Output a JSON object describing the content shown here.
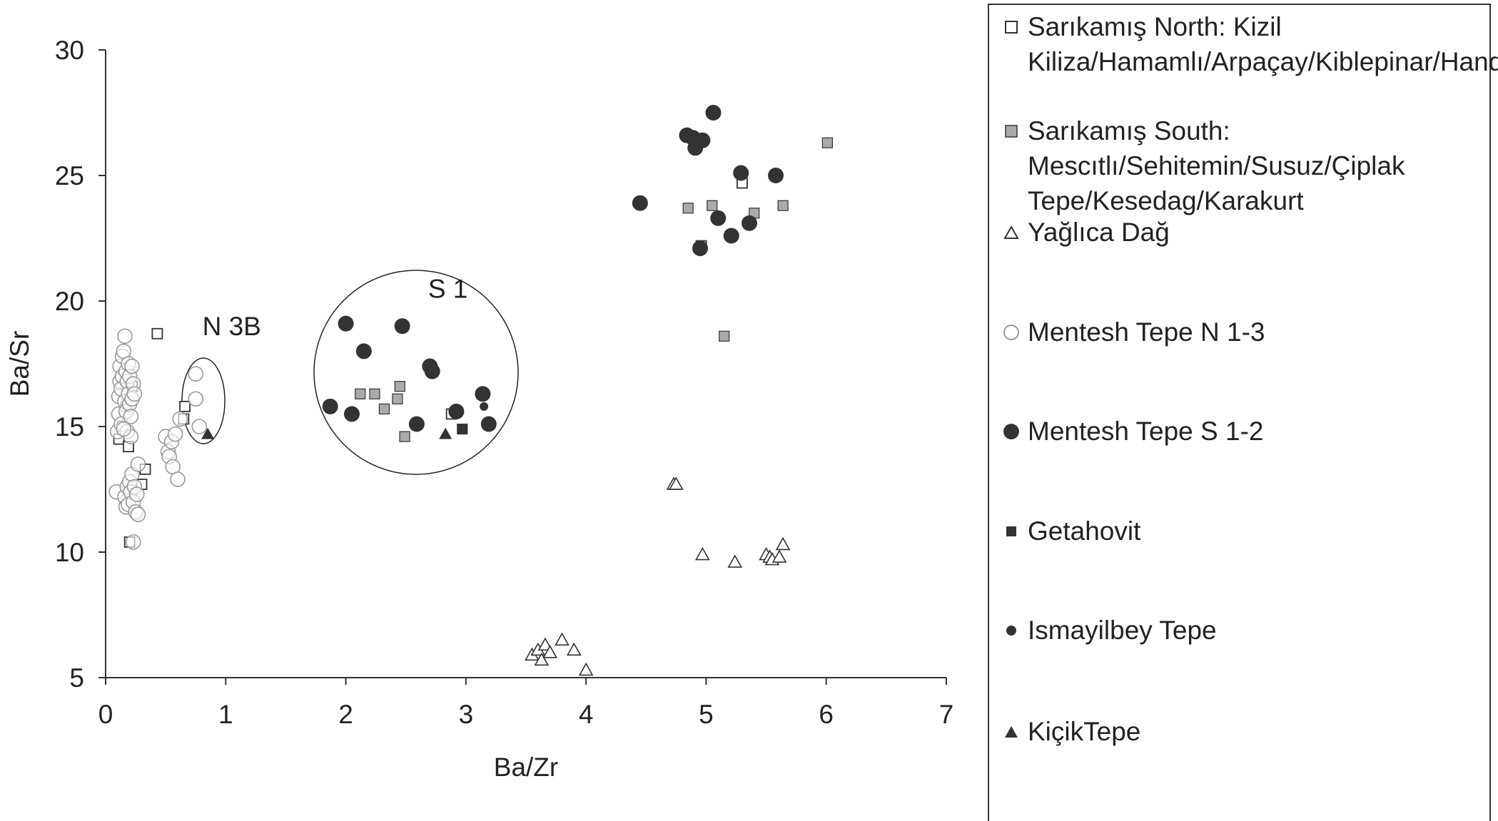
{
  "chart_data": {
    "type": "scatter",
    "xlabel": "Ba/Zr",
    "ylabel": "Ba/Sr",
    "xlim": [
      0,
      7
    ],
    "ylim": [
      5,
      30
    ],
    "xticks": [
      "0",
      "1",
      "2",
      "3",
      "4",
      "5",
      "6",
      "7"
    ],
    "yticks": [
      "5",
      "10",
      "15",
      "20",
      "25",
      "30"
    ],
    "grid": false,
    "legend_position": "right",
    "annotations": [
      {
        "text": "S 1",
        "x": 2.85,
        "y": 20.5
      },
      {
        "text": "N 3B",
        "x": 1.05,
        "y": 19.0
      }
    ],
    "series": [
      {
        "name": "Sarıkamış North: Kizil Kiliza/Hamamlı/Arpaçay/Kiblepinar/Handere",
        "marker": "square-open",
        "color": "#333333",
        "points": [
          [
            0.11,
            14.5
          ],
          [
            0.14,
            15.0
          ],
          [
            0.19,
            14.2
          ],
          [
            0.2,
            10.4
          ],
          [
            0.3,
            12.7
          ],
          [
            0.33,
            13.3
          ],
          [
            0.43,
            18.7
          ],
          [
            0.65,
            15.3
          ],
          [
            0.66,
            15.8
          ],
          [
            2.88,
            15.5
          ],
          [
            4.96,
            22.2
          ],
          [
            5.3,
            24.7
          ],
          [
            0.17,
            15.8
          ],
          [
            0.22,
            16.6
          ]
        ]
      },
      {
        "name": "Sarıkamış South: Mescıtlı/Sehitemin/Susuz/Çiplak Tepe/Kesedag/Karakurt",
        "marker": "square-filled",
        "color": "#aaaaaa",
        "points": [
          [
            2.12,
            16.3
          ],
          [
            2.24,
            16.3
          ],
          [
            2.32,
            15.7
          ],
          [
            2.43,
            16.1
          ],
          [
            2.45,
            16.6
          ],
          [
            2.49,
            14.6
          ],
          [
            4.85,
            23.7
          ],
          [
            5.05,
            23.8
          ],
          [
            5.15,
            18.6
          ],
          [
            5.4,
            23.5
          ],
          [
            5.64,
            23.8
          ],
          [
            6.01,
            26.3
          ]
        ]
      },
      {
        "name": "Yağlıca Dağ",
        "marker": "triangle-open",
        "color": "#333333",
        "points": [
          [
            3.55,
            5.9
          ],
          [
            3.6,
            6.1
          ],
          [
            3.63,
            5.7
          ],
          [
            3.66,
            6.3
          ],
          [
            3.7,
            6.0
          ],
          [
            3.8,
            6.5
          ],
          [
            3.9,
            6.1
          ],
          [
            4.0,
            5.3
          ],
          [
            4.73,
            12.7
          ],
          [
            4.75,
            12.7
          ],
          [
            4.97,
            9.9
          ],
          [
            5.24,
            9.6
          ],
          [
            5.5,
            9.9
          ],
          [
            5.53,
            9.8
          ],
          [
            5.55,
            9.7
          ],
          [
            5.61,
            9.8
          ],
          [
            5.64,
            10.3
          ]
        ]
      },
      {
        "name": "Mentesh Tepe N 1-3",
        "marker": "circle-open",
        "color": "#999999",
        "points": [
          [
            0.09,
            12.4
          ],
          [
            0.1,
            14.8
          ],
          [
            0.11,
            15.5
          ],
          [
            0.11,
            16.2
          ],
          [
            0.12,
            16.8
          ],
          [
            0.12,
            17.4
          ],
          [
            0.13,
            15.1
          ],
          [
            0.13,
            16.5
          ],
          [
            0.14,
            17.0
          ],
          [
            0.14,
            17.8
          ],
          [
            0.15,
            18.0
          ],
          [
            0.16,
            18.6
          ],
          [
            0.16,
            16.0
          ],
          [
            0.17,
            17.2
          ],
          [
            0.17,
            15.6
          ],
          [
            0.18,
            16.8
          ],
          [
            0.18,
            14.8
          ],
          [
            0.19,
            17.5
          ],
          [
            0.19,
            16.3
          ],
          [
            0.2,
            15.9
          ],
          [
            0.2,
            17.0
          ],
          [
            0.21,
            14.6
          ],
          [
            0.21,
            15.4
          ],
          [
            0.22,
            16.1
          ],
          [
            0.22,
            17.4
          ],
          [
            0.23,
            16.7
          ],
          [
            0.24,
            16.3
          ],
          [
            0.16,
            12.2
          ],
          [
            0.17,
            11.8
          ],
          [
            0.18,
            12.6
          ],
          [
            0.19,
            11.9
          ],
          [
            0.2,
            12.8
          ],
          [
            0.21,
            12.4
          ],
          [
            0.22,
            13.1
          ],
          [
            0.23,
            12.0
          ],
          [
            0.24,
            12.6
          ],
          [
            0.25,
            11.6
          ],
          [
            0.26,
            12.3
          ],
          [
            0.27,
            13.5
          ],
          [
            0.27,
            11.5
          ],
          [
            0.23,
            10.4
          ],
          [
            0.15,
            14.9
          ],
          [
            0.5,
            14.6
          ],
          [
            0.52,
            14.0
          ],
          [
            0.53,
            13.8
          ],
          [
            0.55,
            14.4
          ],
          [
            0.56,
            13.4
          ],
          [
            0.58,
            14.7
          ],
          [
            0.6,
            12.9
          ],
          [
            0.62,
            15.3
          ],
          [
            0.75,
            17.1
          ],
          [
            0.75,
            16.1
          ],
          [
            0.78,
            15.0
          ]
        ]
      },
      {
        "name": "Mentesh Tepe S 1-2",
        "marker": "circle-filled",
        "color": "#333333",
        "points": [
          [
            1.87,
            15.8
          ],
          [
            2.0,
            19.1
          ],
          [
            2.05,
            15.5
          ],
          [
            2.15,
            18.0
          ],
          [
            2.47,
            19.0
          ],
          [
            2.59,
            15.1
          ],
          [
            2.7,
            17.4
          ],
          [
            2.72,
            17.2
          ],
          [
            2.92,
            15.6
          ],
          [
            3.14,
            16.3
          ],
          [
            3.19,
            15.1
          ],
          [
            4.45,
            23.9
          ],
          [
            4.84,
            26.6
          ],
          [
            4.89,
            26.5
          ],
          [
            4.91,
            26.1
          ],
          [
            4.97,
            26.4
          ],
          [
            5.06,
            27.5
          ],
          [
            5.1,
            23.3
          ],
          [
            5.21,
            22.6
          ],
          [
            5.29,
            25.1
          ],
          [
            5.36,
            23.1
          ],
          [
            5.58,
            25.0
          ],
          [
            4.95,
            22.1
          ]
        ]
      },
      {
        "name": "Getahovit",
        "marker": "square-filled",
        "color": "#333333",
        "points": [
          [
            2.97,
            14.9
          ]
        ]
      },
      {
        "name": "Ismayilbey Tepe",
        "marker": "circle-small",
        "color": "#333333",
        "points": [
          [
            3.15,
            15.8
          ]
        ]
      },
      {
        "name": "KiçikTepe",
        "marker": "triangle-filled",
        "color": "#333333",
        "points": [
          [
            0.85,
            14.7
          ],
          [
            2.83,
            14.7
          ]
        ]
      }
    ]
  }
}
